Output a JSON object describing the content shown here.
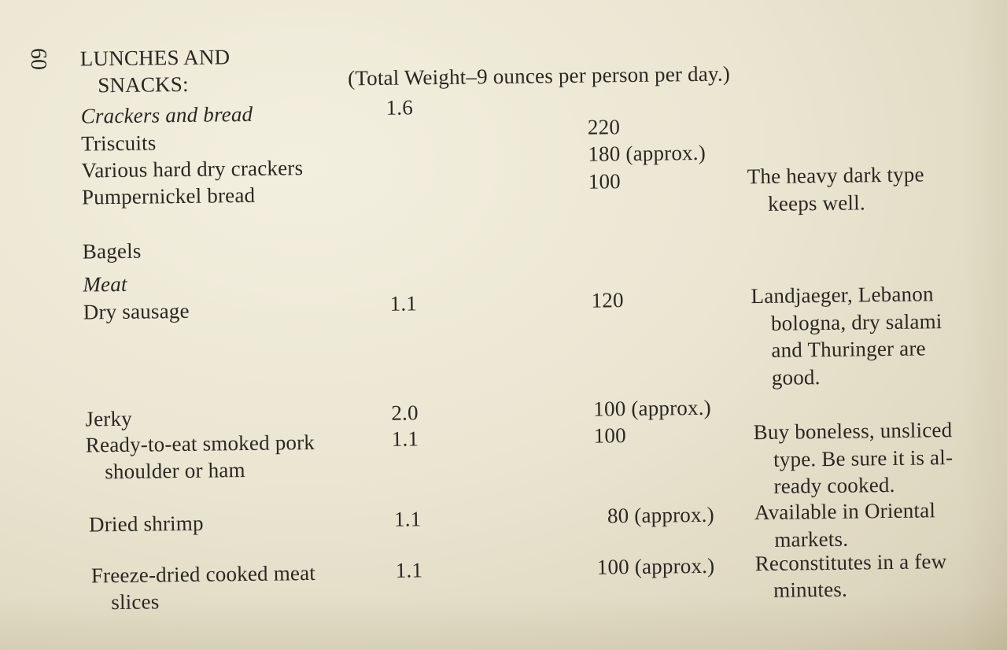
{
  "page_number": "60",
  "section": {
    "title_line1": "LUNCHES AND",
    "title_line2": "SNACKS:",
    "total_weight": "(Total Weight–9 ounces per person per day.)"
  },
  "rows": [
    {
      "item": "Crackers and bread",
      "weight": "1.6",
      "count": "",
      "note": ""
    },
    {
      "item": "Triscuits",
      "weight": "",
      "count": "220",
      "note": ""
    },
    {
      "item": "Various hard dry crackers",
      "weight": "",
      "count": "180 (approx.)",
      "note": ""
    },
    {
      "item": "Pumpernickel bread",
      "weight": "",
      "count": "100",
      "note_line1": "The heavy dark type",
      "note_line2": "keeps well."
    },
    {
      "item": "Bagels",
      "weight": "",
      "count": "",
      "note": ""
    },
    {
      "item": "Meat",
      "weight": "",
      "count": "",
      "note": ""
    },
    {
      "item": "Dry sausage",
      "weight": "1.1",
      "count": "120",
      "note_line1": "Landjaeger, Lebanon",
      "note_line2": "bologna, dry salami",
      "note_line3": "and Thuringer are",
      "note_line4": "good."
    },
    {
      "item": "Jerky",
      "weight": "2.0",
      "count": "100 (approx.)",
      "note": ""
    },
    {
      "item_line1": "Ready-to-eat smoked pork",
      "item_line2": "shoulder or ham",
      "weight": "1.1",
      "count": "100",
      "note_line1": "Buy boneless, unsliced",
      "note_line2": "type. Be sure it is al-",
      "note_line3": "ready cooked."
    },
    {
      "item": "Dried shrimp",
      "weight": "1.1",
      "count": "80 (approx.)",
      "note_line1": "Available in Oriental",
      "note_line2": "markets."
    },
    {
      "item_line1": "Freeze-dried cooked meat",
      "item_line2": "slices",
      "weight": "1.1",
      "count": "100 (approx.)",
      "note_line1": "Reconstitutes in a few",
      "note_line2": "minutes."
    }
  ]
}
